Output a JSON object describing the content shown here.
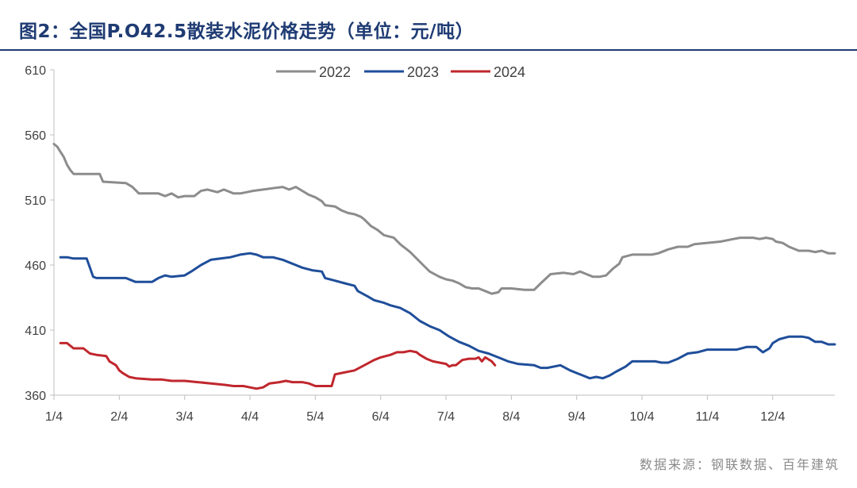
{
  "chart_data": {
    "type": "line",
    "title": "图2：全国P.O42.5散装水泥价格走势（单位：元/吨）",
    "source": "数据来源：钢联数据、百年建筑",
    "ylim": [
      360,
      610
    ],
    "yticks": [
      360,
      410,
      460,
      510,
      560,
      610
    ],
    "xlim": [
      1,
      12.95
    ],
    "xtick_labels": [
      "1/4",
      "2/4",
      "3/4",
      "4/4",
      "5/4",
      "6/4",
      "7/4",
      "8/4",
      "9/4",
      "10/4",
      "11/4",
      "12/4"
    ],
    "grid": false,
    "legend_position": "top",
    "series": [
      {
        "name": "2022",
        "color": "#8c8c8c",
        "points": [
          [
            1.0,
            553
          ],
          [
            1.05,
            551
          ],
          [
            1.1,
            547
          ],
          [
            1.15,
            543
          ],
          [
            1.2,
            537
          ],
          [
            1.25,
            533
          ],
          [
            1.3,
            530
          ],
          [
            1.7,
            530
          ],
          [
            1.75,
            524
          ],
          [
            2.1,
            523
          ],
          [
            2.2,
            520
          ],
          [
            2.3,
            515
          ],
          [
            2.6,
            515
          ],
          [
            2.7,
            513
          ],
          [
            2.8,
            515
          ],
          [
            2.9,
            512
          ],
          [
            3.0,
            513
          ],
          [
            3.15,
            513
          ],
          [
            3.25,
            517
          ],
          [
            3.35,
            518
          ],
          [
            3.5,
            516
          ],
          [
            3.6,
            518
          ],
          [
            3.75,
            515
          ],
          [
            3.85,
            515
          ],
          [
            3.95,
            516
          ],
          [
            4.05,
            517
          ],
          [
            4.2,
            518
          ],
          [
            4.35,
            519
          ],
          [
            4.5,
            520
          ],
          [
            4.6,
            518
          ],
          [
            4.7,
            520
          ],
          [
            4.8,
            517
          ],
          [
            4.9,
            514
          ],
          [
            5.0,
            512
          ],
          [
            5.1,
            509
          ],
          [
            5.15,
            506
          ],
          [
            5.3,
            505
          ],
          [
            5.4,
            502
          ],
          [
            5.5,
            500
          ],
          [
            5.6,
            499
          ],
          [
            5.7,
            497
          ],
          [
            5.75,
            495
          ],
          [
            5.85,
            490
          ],
          [
            5.95,
            487
          ],
          [
            6.05,
            483
          ],
          [
            6.2,
            481
          ],
          [
            6.3,
            476
          ],
          [
            6.45,
            470
          ],
          [
            6.55,
            465
          ],
          [
            6.65,
            460
          ],
          [
            6.75,
            455
          ],
          [
            6.9,
            451
          ],
          [
            7.0,
            449
          ],
          [
            7.1,
            448
          ],
          [
            7.2,
            446
          ],
          [
            7.3,
            443
          ],
          [
            7.4,
            442
          ],
          [
            7.5,
            442
          ],
          [
            7.6,
            440
          ],
          [
            7.7,
            438
          ],
          [
            7.8,
            439
          ],
          [
            7.85,
            442
          ],
          [
            8.0,
            442
          ],
          [
            8.2,
            441
          ],
          [
            8.35,
            441
          ],
          [
            8.45,
            446
          ],
          [
            8.6,
            453
          ],
          [
            8.8,
            454
          ],
          [
            8.95,
            453
          ],
          [
            9.05,
            455
          ],
          [
            9.15,
            453
          ],
          [
            9.25,
            451
          ],
          [
            9.35,
            451
          ],
          [
            9.45,
            452
          ],
          [
            9.55,
            457
          ],
          [
            9.65,
            461
          ],
          [
            9.7,
            466
          ],
          [
            9.85,
            468
          ],
          [
            10.0,
            468
          ],
          [
            10.15,
            468
          ],
          [
            10.25,
            469
          ],
          [
            10.4,
            472
          ],
          [
            10.55,
            474
          ],
          [
            10.7,
            474
          ],
          [
            10.8,
            476
          ],
          [
            11.0,
            477
          ],
          [
            11.2,
            478
          ],
          [
            11.4,
            480
          ],
          [
            11.5,
            481
          ],
          [
            11.7,
            481
          ],
          [
            11.8,
            480
          ],
          [
            11.9,
            481
          ],
          [
            12.0,
            480
          ],
          [
            12.05,
            478
          ],
          [
            12.15,
            477
          ],
          [
            12.25,
            474
          ],
          [
            12.4,
            471
          ],
          [
            12.55,
            471
          ],
          [
            12.65,
            470
          ],
          [
            12.75,
            471
          ],
          [
            12.85,
            469
          ],
          [
            12.95,
            469
          ]
        ]
      },
      {
        "name": "2023",
        "color": "#1f4e9a",
        "points": [
          [
            1.1,
            466
          ],
          [
            1.2,
            466
          ],
          [
            1.3,
            465
          ],
          [
            1.5,
            465
          ],
          [
            1.6,
            451
          ],
          [
            1.65,
            450
          ],
          [
            1.9,
            450
          ],
          [
            2.1,
            450
          ],
          [
            2.25,
            447
          ],
          [
            2.5,
            447
          ],
          [
            2.6,
            450
          ],
          [
            2.7,
            452
          ],
          [
            2.8,
            451
          ],
          [
            3.0,
            452
          ],
          [
            3.1,
            455
          ],
          [
            3.25,
            460
          ],
          [
            3.4,
            464
          ],
          [
            3.55,
            465
          ],
          [
            3.7,
            466
          ],
          [
            3.85,
            468
          ],
          [
            4.0,
            469
          ],
          [
            4.1,
            468
          ],
          [
            4.2,
            466
          ],
          [
            4.35,
            466
          ],
          [
            4.5,
            464
          ],
          [
            4.6,
            462
          ],
          [
            4.7,
            460
          ],
          [
            4.8,
            458
          ],
          [
            4.95,
            456
          ],
          [
            5.1,
            455
          ],
          [
            5.15,
            450
          ],
          [
            5.3,
            448
          ],
          [
            5.45,
            446
          ],
          [
            5.6,
            444
          ],
          [
            5.65,
            440
          ],
          [
            5.8,
            436
          ],
          [
            5.9,
            433
          ],
          [
            6.05,
            431
          ],
          [
            6.15,
            429
          ],
          [
            6.3,
            427
          ],
          [
            6.45,
            423
          ],
          [
            6.6,
            417
          ],
          [
            6.75,
            413
          ],
          [
            6.9,
            410
          ],
          [
            7.05,
            405
          ],
          [
            7.2,
            401
          ],
          [
            7.35,
            398
          ],
          [
            7.5,
            394
          ],
          [
            7.65,
            392
          ],
          [
            7.8,
            389
          ],
          [
            7.95,
            386
          ],
          [
            8.1,
            384
          ],
          [
            8.35,
            383
          ],
          [
            8.45,
            381
          ],
          [
            8.55,
            381
          ],
          [
            8.75,
            383
          ],
          [
            8.9,
            379
          ],
          [
            9.0,
            377
          ],
          [
            9.1,
            375
          ],
          [
            9.2,
            373
          ],
          [
            9.3,
            374
          ],
          [
            9.4,
            373
          ],
          [
            9.5,
            375
          ],
          [
            9.6,
            378
          ],
          [
            9.75,
            382
          ],
          [
            9.85,
            386
          ],
          [
            9.95,
            386
          ],
          [
            10.1,
            386
          ],
          [
            10.2,
            386
          ],
          [
            10.3,
            385
          ],
          [
            10.4,
            385
          ],
          [
            10.55,
            388
          ],
          [
            10.7,
            392
          ],
          [
            10.85,
            393
          ],
          [
            11.0,
            395
          ],
          [
            11.15,
            395
          ],
          [
            11.3,
            395
          ],
          [
            11.45,
            395
          ],
          [
            11.6,
            397
          ],
          [
            11.75,
            397
          ],
          [
            11.85,
            393
          ],
          [
            11.95,
            396
          ],
          [
            12.0,
            400
          ],
          [
            12.1,
            403
          ],
          [
            12.25,
            405
          ],
          [
            12.35,
            405
          ],
          [
            12.45,
            405
          ],
          [
            12.55,
            404
          ],
          [
            12.65,
            401
          ],
          [
            12.75,
            401
          ],
          [
            12.85,
            399
          ],
          [
            12.95,
            399
          ]
        ]
      },
      {
        "name": "2024",
        "color": "#c0272d",
        "points": [
          [
            1.1,
            400
          ],
          [
            1.2,
            400
          ],
          [
            1.3,
            396
          ],
          [
            1.45,
            396
          ],
          [
            1.55,
            392
          ],
          [
            1.65,
            391
          ],
          [
            1.8,
            390
          ],
          [
            1.85,
            386
          ],
          [
            1.95,
            383
          ],
          [
            2.0,
            379
          ],
          [
            2.05,
            377
          ],
          [
            2.15,
            374
          ],
          [
            2.25,
            373
          ],
          [
            2.5,
            372
          ],
          [
            2.65,
            372
          ],
          [
            2.8,
            371
          ],
          [
            3.0,
            371
          ],
          [
            3.2,
            370
          ],
          [
            3.4,
            369
          ],
          [
            3.6,
            368
          ],
          [
            3.75,
            367
          ],
          [
            3.9,
            367
          ],
          [
            4.0,
            366
          ],
          [
            4.1,
            365
          ],
          [
            4.2,
            366
          ],
          [
            4.3,
            369
          ],
          [
            4.45,
            370
          ],
          [
            4.55,
            371
          ],
          [
            4.65,
            370
          ],
          [
            4.8,
            370
          ],
          [
            4.9,
            369
          ],
          [
            5.0,
            367
          ],
          [
            5.1,
            367
          ],
          [
            5.25,
            367
          ],
          [
            5.3,
            376
          ],
          [
            5.4,
            377
          ],
          [
            5.6,
            379
          ],
          [
            5.75,
            383
          ],
          [
            5.9,
            387
          ],
          [
            6.0,
            389
          ],
          [
            6.15,
            391
          ],
          [
            6.25,
            393
          ],
          [
            6.35,
            393
          ],
          [
            6.45,
            394
          ],
          [
            6.55,
            393
          ],
          [
            6.6,
            391
          ],
          [
            6.7,
            388
          ],
          [
            6.8,
            386
          ],
          [
            6.9,
            385
          ],
          [
            7.0,
            384
          ],
          [
            7.05,
            382
          ],
          [
            7.1,
            383
          ],
          [
            7.15,
            383
          ],
          [
            7.25,
            387
          ],
          [
            7.35,
            388
          ],
          [
            7.45,
            388
          ],
          [
            7.5,
            389
          ],
          [
            7.55,
            386
          ],
          [
            7.6,
            389
          ],
          [
            7.7,
            386
          ],
          [
            7.75,
            383
          ]
        ]
      }
    ]
  }
}
